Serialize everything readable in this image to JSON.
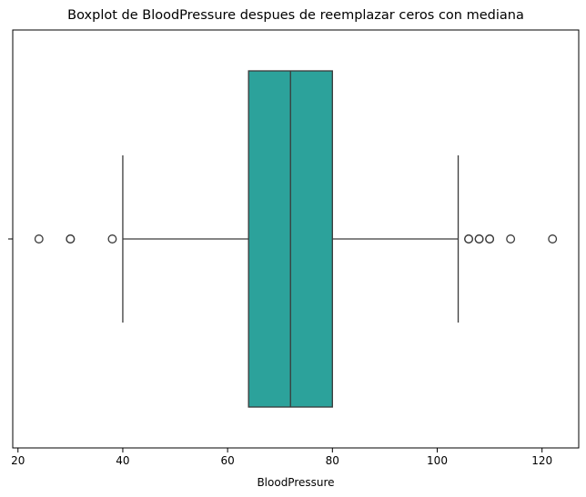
{
  "chart_data": {
    "type": "boxplot",
    "title": "Boxplot de BloodPressure despues de reemplazar ceros con mediana",
    "xlabel": "BloodPressure",
    "ylabel": "",
    "xlim": [
      19,
      127
    ],
    "xticks": [
      20,
      40,
      60,
      80,
      100,
      120
    ],
    "grid": false,
    "colors": {
      "box_fill": "#2ca29b",
      "line": "#3a3a3a",
      "outlier_edge": "#3a3a3a",
      "axis": "#000000"
    },
    "box": {
      "whisker_low": 40,
      "q1": 64,
      "median": 72,
      "q3": 80,
      "whisker_high": 104
    },
    "outliers": [
      24,
      30,
      30,
      38,
      106,
      106,
      108,
      108,
      110,
      110,
      114,
      122
    ]
  }
}
